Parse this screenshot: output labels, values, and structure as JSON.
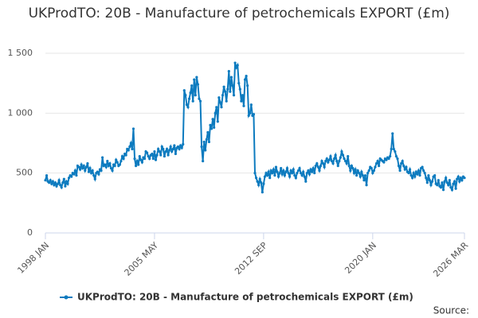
{
  "chart_data": {
    "type": "line",
    "title": "UKProdTO: 20B - Manufacture of petrochemicals EXPORT (£m)",
    "source_label": "Source:",
    "categories": [
      "1998 JAN",
      null,
      null,
      null,
      null,
      null,
      null,
      null,
      null,
      null,
      null,
      null,
      null,
      null,
      null,
      null,
      null,
      null,
      null,
      null,
      null,
      null,
      null,
      null,
      null,
      null,
      null,
      null,
      null,
      null,
      null,
      null,
      null,
      null,
      null,
      null,
      null,
      null,
      null,
      null,
      null,
      null,
      null,
      null,
      null,
      null,
      null,
      null,
      null,
      null,
      null,
      null,
      null,
      null,
      null,
      null,
      null,
      null,
      null,
      null,
      null,
      null,
      null,
      null,
      null,
      null,
      null,
      null,
      null,
      null,
      null,
      null,
      null,
      null,
      null,
      null,
      null,
      null,
      null,
      null,
      null,
      null,
      null,
      null,
      null,
      null,
      null,
      null,
      "2005 MAY",
      null,
      null,
      null,
      null,
      null,
      null,
      null,
      null,
      null,
      null,
      null,
      null,
      null,
      null,
      null,
      null,
      null,
      null,
      null,
      null,
      null,
      null,
      null,
      null,
      null,
      null,
      null,
      null,
      null,
      null,
      null,
      null,
      null,
      null,
      null,
      null,
      null,
      null,
      null,
      null,
      null,
      null,
      null,
      null,
      null,
      null,
      null,
      null,
      null,
      null,
      null,
      null,
      null,
      null,
      null,
      null,
      null,
      null,
      null,
      null,
      null,
      null,
      null,
      null,
      null,
      null,
      null,
      null,
      null,
      null,
      null,
      null,
      null,
      null,
      null,
      null,
      null,
      null,
      null,
      null,
      null,
      null,
      null,
      null,
      null,
      null,
      null,
      "2012 SEP",
      null,
      null,
      null,
      null,
      null,
      null,
      null,
      null,
      null,
      null,
      null,
      null,
      null,
      null,
      null,
      null,
      null,
      null,
      null,
      null,
      null,
      null,
      null,
      null,
      null,
      null,
      null,
      null,
      null,
      null,
      null,
      null,
      null,
      null,
      null,
      null,
      null,
      null,
      null,
      null,
      null,
      null,
      null,
      null,
      null,
      null,
      null,
      null,
      null,
      null,
      null,
      null,
      null,
      null,
      null,
      null,
      null,
      null,
      null,
      null,
      null,
      null,
      null,
      null,
      null,
      null,
      null,
      null,
      null,
      null,
      null,
      null,
      null,
      null,
      null,
      null,
      null,
      null,
      null,
      null,
      null,
      null,
      null,
      null,
      null,
      null,
      null,
      "2020 JAN",
      null,
      null,
      null,
      null,
      null,
      null,
      null,
      null,
      null,
      null,
      null,
      null,
      null,
      null,
      null,
      null,
      null,
      null,
      null,
      null,
      null,
      null,
      null,
      null,
      null,
      null,
      null,
      null,
      null,
      null,
      null,
      null,
      null,
      null,
      null,
      null,
      null,
      null,
      null,
      null,
      null,
      null,
      null,
      null,
      null,
      null,
      null,
      null,
      null,
      null,
      null,
      null,
      null,
      null,
      null,
      null,
      null,
      null,
      null,
      null,
      null,
      null,
      null,
      null,
      null,
      null,
      null,
      null,
      null,
      null,
      null,
      null,
      null,
      "2026 MAR"
    ],
    "series": [
      {
        "name": "UKProdTO: 20B - Manufacture of petrochemicals EXPORT (£m)",
        "color": "#0d7bbf",
        "values": [
          440,
          480,
          430,
          420,
          440,
          410,
          430,
          400,
          420,
          390,
          410,
          440,
          400,
          380,
          420,
          450,
          390,
          430,
          410,
          460,
          480,
          470,
          500,
          490,
          520,
          480,
          560,
          550,
          530,
          570,
          540,
          560,
          520,
          550,
          580,
          510,
          540,
          500,
          520,
          480,
          450,
          500,
          510,
          490,
          530,
          520,
          630,
          560,
          570,
          550,
          600,
          560,
          580,
          540,
          520,
          570,
          560,
          610,
          590,
          560,
          570,
          600,
          640,
          620,
          660,
          650,
          700,
          690,
          720,
          750,
          700,
          870,
          620,
          560,
          600,
          570,
          640,
          610,
          590,
          630,
          620,
          680,
          670,
          640,
          620,
          650,
          660,
          620,
          680,
          610,
          650,
          700,
          680,
          650,
          720,
          700,
          640,
          680,
          700,
          650,
          690,
          720,
          680,
          700,
          730,
          660,
          710,
          720,
          700,
          730,
          710,
          740,
          1190,
          1150,
          1070,
          1050,
          1120,
          1170,
          1230,
          1100,
          1280,
          1150,
          1300,
          1240,
          1120,
          1100,
          720,
          600,
          760,
          690,
          780,
          840,
          760,
          900,
          870,
          950,
          880,
          1000,
          1050,
          930,
          1130,
          1090,
          1050,
          1150,
          1220,
          1180,
          1100,
          1200,
          1350,
          1180,
          1300,
          1230,
          1150,
          1420,
          1380,
          1400,
          1250,
          1200,
          1100,
          1150,
          1060,
          1280,
          1310,
          1230,
          980,
          1000,
          1070,
          980,
          990,
          500,
          460,
          430,
          400,
          450,
          420,
          340,
          410,
          470,
          500,
          480,
          510,
          460,
          520,
          500,
          530,
          480,
          550,
          510,
          470,
          500,
          540,
          490,
          520,
          480,
          510,
          540,
          500,
          470,
          520,
          500,
          530,
          480,
          460,
          500,
          520,
          540,
          500,
          480,
          510,
          470,
          430,
          500,
          520,
          490,
          530,
          510,
          540,
          500,
          560,
          580,
          550,
          520,
          560,
          600,
          580,
          550,
          600,
          620,
          590,
          610,
          640,
          600,
          580,
          620,
          650,
          600,
          560,
          600,
          630,
          680,
          650,
          620,
          600,
          580,
          640,
          560,
          520,
          560,
          540,
          500,
          530,
          480,
          520,
          500,
          470,
          510,
          480,
          440,
          480,
          400,
          500,
          520,
          550,
          540,
          500,
          520,
          550,
          580,
          600,
          560,
          620,
          610,
          600,
          590,
          620,
          610,
          630,
          620,
          640,
          700,
          830,
          700,
          680,
          640,
          620,
          560,
          520,
          580,
          600,
          560,
          530,
          550,
          510,
          500,
          530,
          480,
          460,
          500,
          470,
          510,
          490,
          520,
          480,
          540,
          550,
          520,
          500,
          460,
          420,
          480,
          440,
          400,
          430,
          470,
          480,
          410,
          400,
          440,
          390,
          380,
          420,
          360,
          430,
          460,
          420,
          400,
          440,
          380,
          360,
          410,
          430,
          370,
          450,
          470,
          430,
          460,
          440,
          470,
          460
        ]
      }
    ],
    "ylim": [
      0,
      1500
    ],
    "yticks": [
      0,
      500,
      {
        "value": 1000,
        "label": "1 000"
      },
      {
        "value": 1500,
        "label": "1 500"
      }
    ],
    "grid": true
  }
}
